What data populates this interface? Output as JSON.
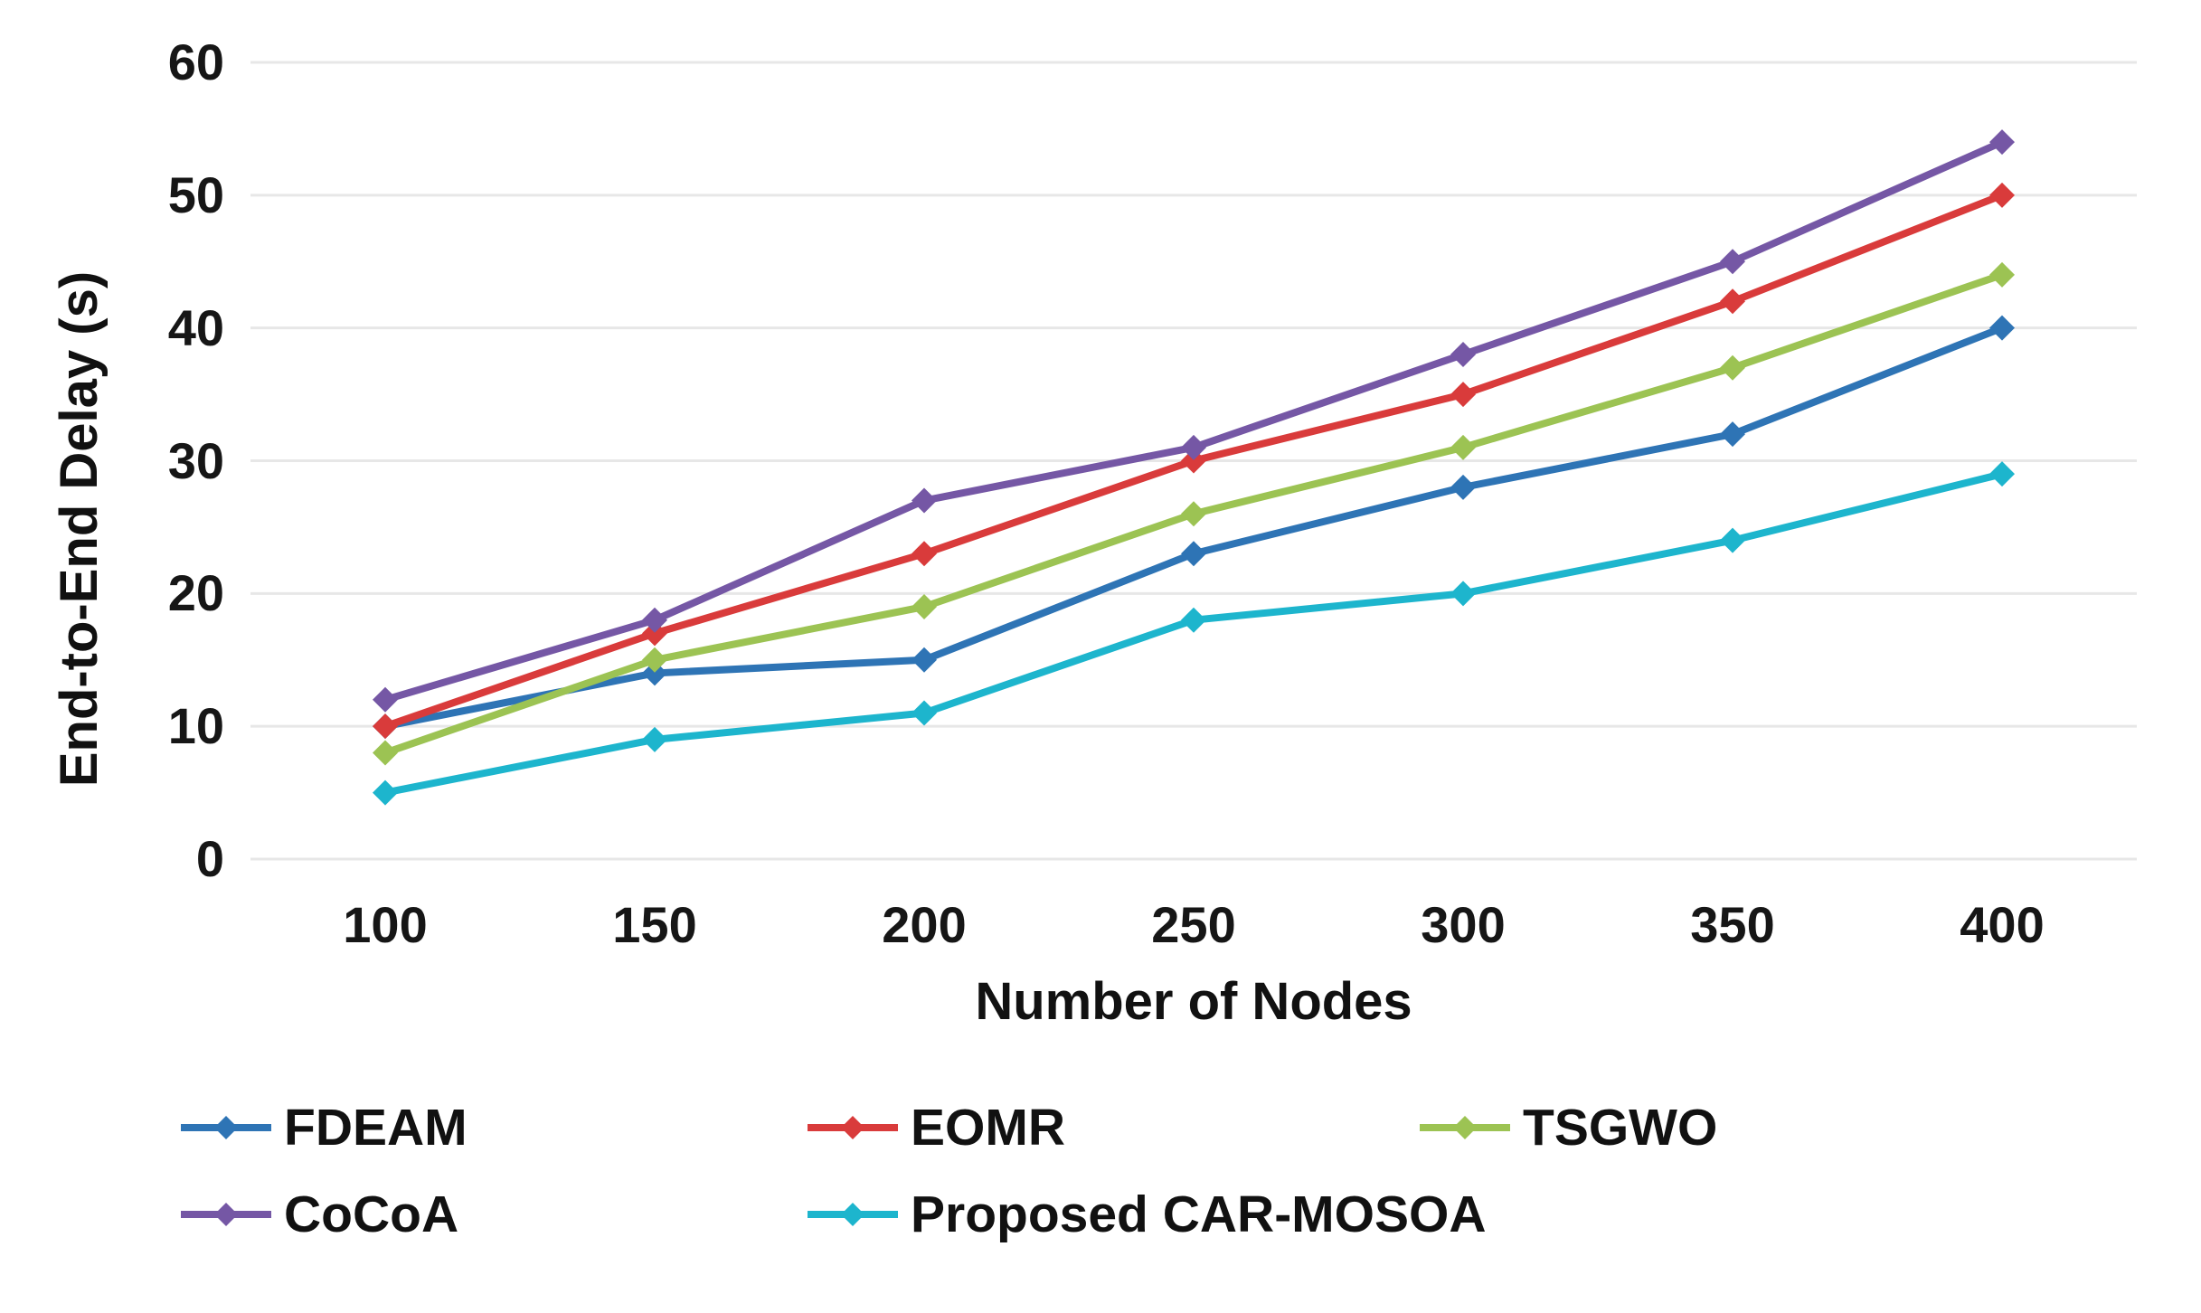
{
  "figure": {
    "background": "#FFFFFF",
    "gridline_color": "#E7E7E7",
    "text_color": "#161616"
  },
  "chart_data": {
    "type": "line",
    "title": "",
    "xlabel": "Number of Nodes",
    "ylabel": "End-to-End Delay (s)",
    "categories": [
      100,
      150,
      200,
      250,
      300,
      350,
      400
    ],
    "y_ticks": [
      0,
      10,
      20,
      30,
      40,
      50,
      60
    ],
    "ylim": [
      0,
      60
    ],
    "grid": "horizontal",
    "marker": "diamond",
    "legend_position": "bottom",
    "series": [
      {
        "name": "FDEAM",
        "color": "#2E74B5",
        "values": [
          10,
          14,
          15,
          23,
          28,
          32,
          40
        ]
      },
      {
        "name": "EOMR",
        "color": "#D93B3B",
        "values": [
          10,
          17,
          23,
          30,
          35,
          42,
          50
        ]
      },
      {
        "name": "TSGWO",
        "color": "#9CC353",
        "values": [
          8,
          15,
          19,
          26,
          31,
          37,
          44
        ]
      },
      {
        "name": "CoCoA",
        "color": "#7557A5",
        "values": [
          12,
          18,
          27,
          31,
          38,
          45,
          54
        ]
      },
      {
        "name": "Proposed CAR-MOSOA",
        "color": "#1DB5CD",
        "values": [
          5,
          9,
          11,
          18,
          20,
          24,
          29
        ]
      }
    ]
  }
}
